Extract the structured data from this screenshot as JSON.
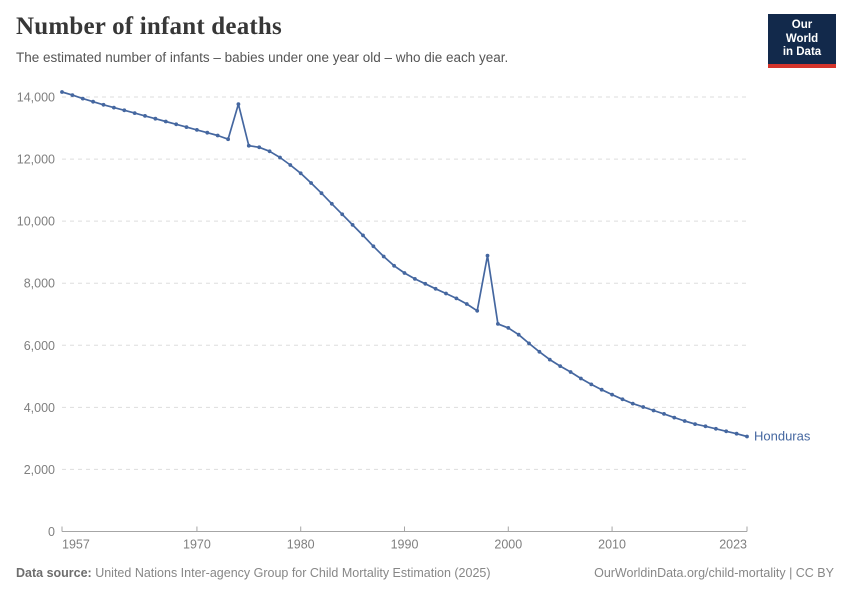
{
  "header": {
    "title": "Number of infant deaths",
    "subtitle": "The estimated number of infants – babies under one year old – who die each year.",
    "logo_line1": "Our World",
    "logo_line2": "in Data"
  },
  "footer": {
    "source_label": "Data source:",
    "source_text": " United Nations Inter-agency Group for Child Mortality Estimation (2025)",
    "right_text": "OurWorldinData.org/child-mortality | CC BY"
  },
  "colors": {
    "line": "#4567a0",
    "grid": "#dddddd",
    "axis": "#a6a6a6",
    "tick_label": "#7f7f7f",
    "logo_bg": "#12294b",
    "logo_red": "#d4342b"
  },
  "chart_data": {
    "type": "line",
    "title": "Number of infant deaths",
    "xlabel": "",
    "ylabel": "",
    "entity_label": "Honduras",
    "ylim": [
      0,
      14000
    ],
    "yticks": [
      0,
      2000,
      4000,
      6000,
      8000,
      10000,
      12000,
      14000
    ],
    "xticks": [
      1957,
      1970,
      1980,
      1990,
      2000,
      2010,
      2023
    ],
    "grid": "horizontal-dashed",
    "legend_position": "end-of-line-label",
    "x": [
      1957,
      1958,
      1959,
      1960,
      1961,
      1962,
      1963,
      1964,
      1965,
      1966,
      1967,
      1968,
      1969,
      1970,
      1971,
      1972,
      1973,
      1974,
      1975,
      1976,
      1977,
      1978,
      1979,
      1980,
      1981,
      1982,
      1983,
      1984,
      1985,
      1986,
      1987,
      1988,
      1989,
      1990,
      1991,
      1992,
      1993,
      1994,
      1995,
      1996,
      1997,
      1998,
      1999,
      2000,
      2001,
      2002,
      2003,
      2004,
      2005,
      2006,
      2007,
      2008,
      2009,
      2010,
      2011,
      2012,
      2013,
      2014,
      2015,
      2016,
      2017,
      2018,
      2019,
      2020,
      2021,
      2022,
      2023
    ],
    "series": [
      {
        "name": "Honduras",
        "values": [
          14160,
          14060,
          13950,
          13850,
          13750,
          13660,
          13570,
          13480,
          13390,
          13300,
          13210,
          13120,
          13030,
          12940,
          12850,
          12760,
          12640,
          13770,
          12430,
          12380,
          12250,
          12050,
          11810,
          11540,
          11230,
          10900,
          10560,
          10220,
          9880,
          9540,
          9190,
          8860,
          8560,
          8330,
          8140,
          7980,
          7820,
          7670,
          7510,
          7330,
          7110,
          8890,
          6690,
          6560,
          6340,
          6060,
          5790,
          5540,
          5330,
          5140,
          4930,
          4740,
          4570,
          4410,
          4260,
          4120,
          4010,
          3900,
          3790,
          3670,
          3560,
          3460,
          3390,
          3310,
          3230,
          3150,
          3060
        ]
      }
    ],
    "annotations": []
  }
}
